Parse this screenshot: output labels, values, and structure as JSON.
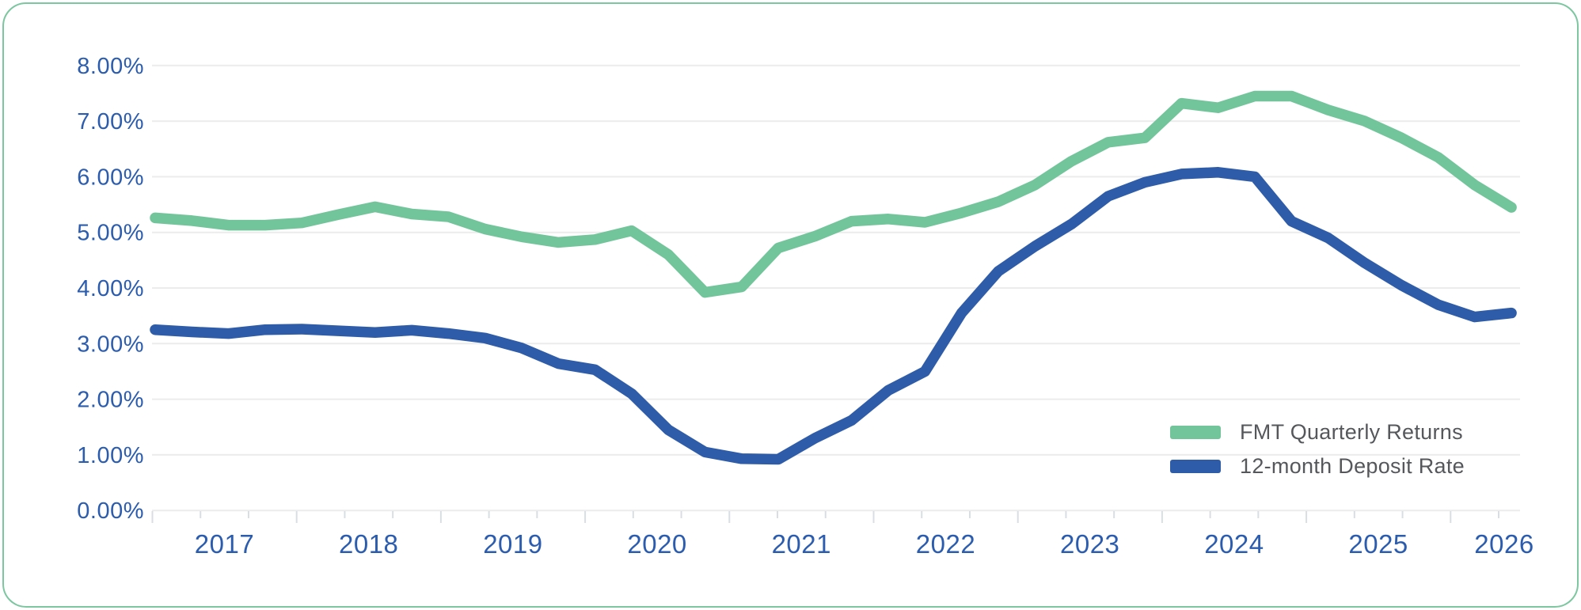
{
  "card": {
    "background_color": "#ffffff",
    "border_color": "#7cc7a0"
  },
  "axis": {
    "y_label_color": "#2b5cae",
    "x_label_color": "#2b5cae",
    "gridline_color": "#ececec",
    "tick_color": "#d9dee3"
  },
  "legend": {
    "text_color": "#55575b",
    "position": "bottom-right",
    "items": [
      {
        "label": "FMT Quarterly Returns",
        "color": "#72c59a"
      },
      {
        "label": "12-month Deposit Rate",
        "color": "#2e5ca8"
      }
    ]
  },
  "chart_data": {
    "type": "line",
    "title": "",
    "xlabel": "",
    "ylabel": "",
    "grid": true,
    "legend_position": "bottom-right",
    "ylim": [
      0,
      8
    ],
    "y_tick_labels": [
      "0.00%",
      "1.00%",
      "2.00%",
      "3.00%",
      "4.00%",
      "5.00%",
      "6.00%",
      "7.00%",
      "8.00%"
    ],
    "x_tick_labels": [
      "2017",
      "2018",
      "2019",
      "2020",
      "2021",
      "2022",
      "2023",
      "2024",
      "2025",
      "2026"
    ],
    "x_start": "2017 Q1",
    "x_step": "quarter",
    "x_minor_ticks_per_year": 3,
    "series": [
      {
        "name": "FMT Quarterly Returns",
        "color": "#72c59a",
        "values": [
          5.26,
          5.21,
          5.13,
          5.13,
          5.17,
          5.32,
          5.46,
          5.33,
          5.28,
          5.06,
          4.92,
          4.82,
          4.87,
          5.03,
          4.6,
          3.92,
          4.02,
          4.72,
          4.93,
          5.2,
          5.24,
          5.18,
          5.35,
          5.55,
          5.85,
          6.28,
          6.62,
          6.7,
          7.32,
          7.24,
          7.45,
          7.45,
          7.2,
          7.0,
          6.7,
          6.35,
          5.85,
          5.45
        ]
      },
      {
        "name": "12-month Deposit Rate",
        "color": "#2e5ca8",
        "values": [
          3.25,
          3.21,
          3.18,
          3.25,
          3.26,
          3.23,
          3.2,
          3.24,
          3.18,
          3.1,
          2.92,
          2.64,
          2.53,
          2.1,
          1.45,
          1.05,
          0.93,
          0.92,
          1.3,
          1.62,
          2.16,
          2.5,
          3.55,
          4.3,
          4.75,
          5.15,
          5.65,
          5.9,
          6.05,
          6.08,
          6.0,
          5.2,
          4.9,
          4.45,
          4.05,
          3.7,
          3.48,
          3.55
        ]
      }
    ]
  }
}
